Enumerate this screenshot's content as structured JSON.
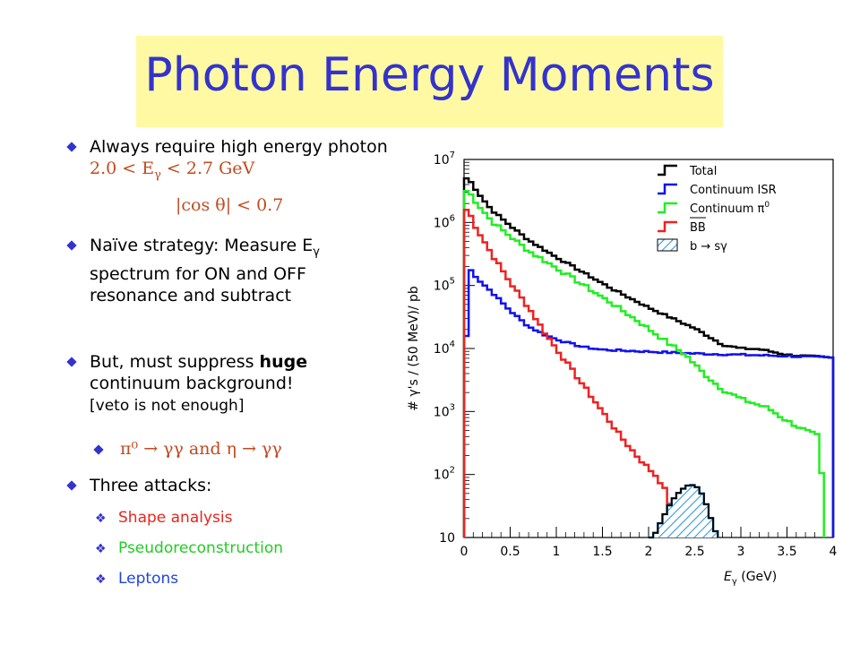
{
  "slide": {
    "title": "Photon Energy Moments",
    "bullets": [
      {
        "text": "Always require high energy photon"
      },
      {
        "text": "Naïve strategy: Measure E"
      },
      {
        "text": "But, must suppress"
      },
      {
        "text": "Three attacks:"
      }
    ],
    "cut_energy": "2.0 < E",
    "cut_energy_tail": " < 2.7 GeV",
    "cut_angle": "|cos θ| < 0.7",
    "strategy_tail": " spectrum for ON and OFF resonance and subtract",
    "huge_word": "huge",
    "continuum_tail": "continuum background!",
    "veto_note": "[veto is not enough]",
    "pi_eta": "π⁰ → γγ and η → γγ",
    "attacks": [
      {
        "label": "Shape analysis",
        "color": "#e8251d"
      },
      {
        "label": "Pseudoreconstruction",
        "color": "#22cc22"
      },
      {
        "label": "Leptons",
        "color": "#2244dd"
      }
    ],
    "gamma_sym": "γ"
  },
  "chart_data": {
    "type": "line",
    "xlabel": "E",
    "xlabel_sub": "γ",
    "xlabel_unit": " (GeV)",
    "ylabel": "# γ's / (50 MeV)/ pb",
    "xlim": [
      0,
      4
    ],
    "ylim_log10": [
      1,
      7
    ],
    "x_ticks": [
      "0",
      "0.5",
      "1",
      "1.5",
      "2",
      "2.5",
      "3",
      "3.5",
      "4"
    ],
    "y_ticks": [
      {
        "base": "10",
        "exp": ""
      },
      {
        "base": "10",
        "exp": "2"
      },
      {
        "base": "10",
        "exp": "3"
      },
      {
        "base": "10",
        "exp": "4"
      },
      {
        "base": "10",
        "exp": "5"
      },
      {
        "base": "10",
        "exp": "6"
      },
      {
        "base": "10",
        "exp": "7"
      }
    ],
    "legend_position": "top-right",
    "series": [
      {
        "name": "Total",
        "color": "#000000",
        "points": [
          [
            0.05,
            6.7
          ],
          [
            0.1,
            6.58
          ],
          [
            0.2,
            6.38
          ],
          [
            0.3,
            6.2
          ],
          [
            0.5,
            5.95
          ],
          [
            0.7,
            5.72
          ],
          [
            1.0,
            5.45
          ],
          [
            1.3,
            5.2
          ],
          [
            1.6,
            4.95
          ],
          [
            2.0,
            4.65
          ],
          [
            2.3,
            4.45
          ],
          [
            2.5,
            4.32
          ],
          [
            2.7,
            4.15
          ],
          [
            2.8,
            4.06
          ],
          [
            3.0,
            4.0
          ],
          [
            3.2,
            3.99
          ],
          [
            3.5,
            3.9
          ],
          [
            3.7,
            3.88
          ],
          [
            4.0,
            3.85
          ]
        ]
      },
      {
        "name": "Continuum ISR",
        "color": "#1111ee",
        "points": [
          [
            0.05,
            4.2
          ],
          [
            0.07,
            5.25
          ],
          [
            0.15,
            5.1
          ],
          [
            0.3,
            4.9
          ],
          [
            0.5,
            4.6
          ],
          [
            0.7,
            4.35
          ],
          [
            0.9,
            4.2
          ],
          [
            1.1,
            4.1
          ],
          [
            1.3,
            4.02
          ],
          [
            1.5,
            3.98
          ],
          [
            2.0,
            3.95
          ],
          [
            2.5,
            3.92
          ],
          [
            3.0,
            3.9
          ],
          [
            3.5,
            3.88
          ],
          [
            4.0,
            3.85
          ]
        ]
      },
      {
        "name": "Continuum π",
        "color": "#22ee22",
        "points": [
          [
            0.05,
            6.5
          ],
          [
            0.1,
            6.38
          ],
          [
            0.2,
            6.2
          ],
          [
            0.3,
            6.02
          ],
          [
            0.5,
            5.78
          ],
          [
            0.7,
            5.55
          ],
          [
            1.0,
            5.28
          ],
          [
            1.3,
            5.0
          ],
          [
            1.6,
            4.72
          ],
          [
            1.9,
            4.42
          ],
          [
            2.2,
            4.1
          ],
          [
            2.4,
            3.9
          ],
          [
            2.6,
            3.6
          ],
          [
            2.8,
            3.35
          ],
          [
            3.0,
            3.2
          ],
          [
            3.3,
            3.05
          ],
          [
            3.5,
            2.85
          ],
          [
            3.7,
            2.7
          ],
          [
            3.85,
            2.6
          ],
          [
            3.9,
            1.4
          ]
        ]
      },
      {
        "name": "BB",
        "color": "#ee2222",
        "points": [
          [
            0.05,
            6.2
          ],
          [
            0.1,
            6.0
          ],
          [
            0.2,
            5.75
          ],
          [
            0.3,
            5.5
          ],
          [
            0.5,
            5.05
          ],
          [
            0.7,
            4.65
          ],
          [
            0.9,
            4.2
          ],
          [
            1.1,
            3.8
          ],
          [
            1.3,
            3.4
          ],
          [
            1.5,
            3.0
          ],
          [
            1.7,
            2.6
          ],
          [
            1.9,
            2.25
          ],
          [
            2.1,
            1.95
          ],
          [
            2.2,
            1.7
          ],
          [
            2.3,
            1.1
          ]
        ]
      },
      {
        "name": "b → sγ",
        "color": "#3399dd",
        "hatched": true,
        "points": [
          [
            2.05,
            1.0
          ],
          [
            2.15,
            1.3
          ],
          [
            2.25,
            1.58
          ],
          [
            2.35,
            1.75
          ],
          [
            2.45,
            1.85
          ],
          [
            2.55,
            1.78
          ],
          [
            2.62,
            1.55
          ],
          [
            2.7,
            1.2
          ],
          [
            2.75,
            1.0
          ]
        ]
      }
    ]
  }
}
